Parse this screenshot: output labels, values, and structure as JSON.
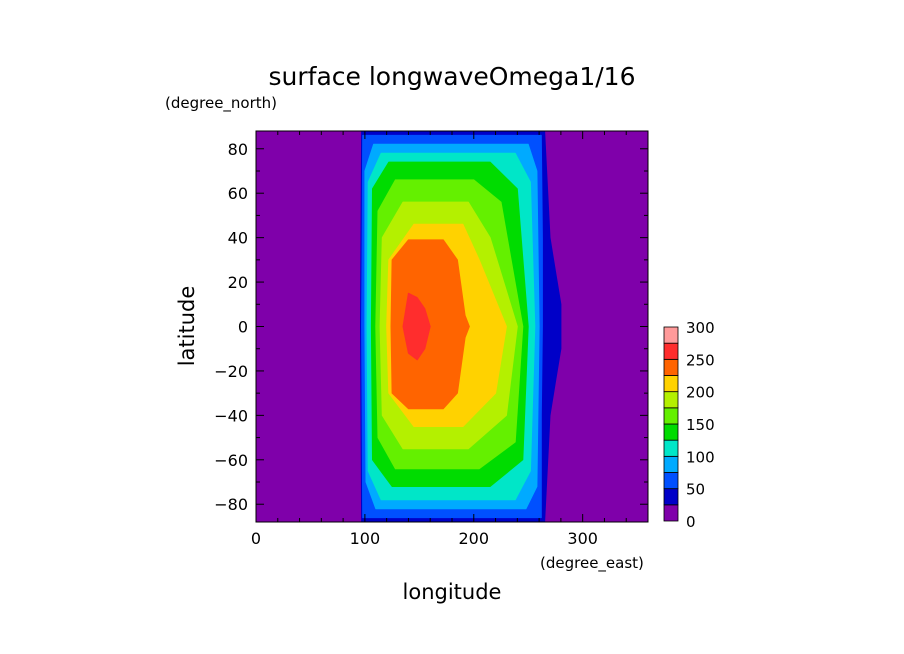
{
  "chart_data": {
    "type": "heatmap",
    "title": "surface longwaveOmega1/16",
    "xlabel": "longitude",
    "ylabel": "latitude",
    "xunits": "(degree_east)",
    "yunits": "(degree_north)",
    "xlim": [
      0,
      360
    ],
    "ylim": [
      -88,
      88
    ],
    "xticks": [
      0,
      100,
      200,
      300
    ],
    "yticks": [
      -80,
      -60,
      -40,
      -20,
      0,
      20,
      40,
      60,
      80
    ],
    "colorbar": {
      "levels": [
        0,
        25,
        50,
        75,
        100,
        125,
        150,
        175,
        200,
        225,
        250,
        275,
        300
      ],
      "labels": [
        "0",
        "50",
        "100",
        "150",
        "200",
        "250",
        "300"
      ],
      "label_values": [
        0,
        50,
        100,
        150,
        200,
        250,
        300
      ],
      "colors": [
        "#7f00aa",
        "#0000c8",
        "#0050ff",
        "#00aaff",
        "#00e6c8",
        "#00dc00",
        "#64f000",
        "#b4f000",
        "#ffd200",
        "#ff6400",
        "#ff2d2d",
        "#ff9a9a"
      ]
    },
    "contours": [
      {
        "level_min": 0,
        "color": "#0000c8",
        "points": [
          [
            97,
            88
          ],
          [
            265,
            88
          ],
          [
            270,
            40
          ],
          [
            275,
            25
          ],
          [
            280,
            10
          ],
          [
            280,
            -10
          ],
          [
            275,
            -25
          ],
          [
            270,
            -40
          ],
          [
            265,
            -88
          ],
          [
            97,
            -88
          ],
          [
            96,
            0
          ]
        ]
      },
      {
        "level_min": 25,
        "color": "#0050ff",
        "points": [
          [
            98,
            86
          ],
          [
            262,
            86
          ],
          [
            263,
            40
          ],
          [
            263,
            0
          ],
          [
            262,
            -40
          ],
          [
            262,
            -86
          ],
          [
            98,
            -86
          ],
          [
            97,
            0
          ]
        ]
      },
      {
        "level_min": 50,
        "color": "#00aaff",
        "points": [
          [
            108,
            82
          ],
          [
            250,
            82
          ],
          [
            258,
            70
          ],
          [
            260,
            0
          ],
          [
            258,
            -72
          ],
          [
            248,
            -82
          ],
          [
            110,
            -82
          ],
          [
            101,
            -70
          ],
          [
            100,
            0
          ],
          [
            100,
            70
          ]
        ]
      },
      {
        "level_min": 75,
        "color": "#00e6c8",
        "points": [
          [
            115,
            78
          ],
          [
            238,
            78
          ],
          [
            252,
            65
          ],
          [
            256,
            0
          ],
          [
            252,
            -65
          ],
          [
            238,
            -78
          ],
          [
            115,
            -78
          ],
          [
            103,
            -65
          ],
          [
            102,
            0
          ],
          [
            103,
            65
          ]
        ]
      },
      {
        "level_min": 100,
        "color": "#00dc00",
        "points": [
          [
            122,
            74
          ],
          [
            215,
            74
          ],
          [
            240,
            62
          ],
          [
            250,
            0
          ],
          [
            245,
            -60
          ],
          [
            215,
            -72
          ],
          [
            125,
            -72
          ],
          [
            107,
            -60
          ],
          [
            106,
            0
          ],
          [
            107,
            62
          ]
        ]
      },
      {
        "level_min": 125,
        "color": "#64f000",
        "points": [
          [
            128,
            66
          ],
          [
            200,
            66
          ],
          [
            225,
            56
          ],
          [
            245,
            0
          ],
          [
            238,
            -52
          ],
          [
            205,
            -64
          ],
          [
            128,
            -64
          ],
          [
            112,
            -50
          ],
          [
            110,
            0
          ],
          [
            112,
            52
          ]
        ]
      },
      {
        "level_min": 150,
        "color": "#b4f000",
        "points": [
          [
            135,
            56
          ],
          [
            195,
            56
          ],
          [
            215,
            40
          ],
          [
            240,
            0
          ],
          [
            230,
            -40
          ],
          [
            195,
            -55
          ],
          [
            135,
            -55
          ],
          [
            116,
            -40
          ],
          [
            114,
            0
          ],
          [
            116,
            40
          ]
        ]
      },
      {
        "level_min": 175,
        "color": "#ffd200",
        "points": [
          [
            145,
            46
          ],
          [
            190,
            46
          ],
          [
            205,
            30
          ],
          [
            230,
            0
          ],
          [
            220,
            -30
          ],
          [
            190,
            -45
          ],
          [
            145,
            -45
          ],
          [
            122,
            -30
          ],
          [
            120,
            0
          ],
          [
            122,
            30
          ]
        ]
      },
      {
        "level_min": 200,
        "color": "#ff6400",
        "points": [
          [
            140,
            39
          ],
          [
            172,
            39
          ],
          [
            185,
            30
          ],
          [
            192,
            5
          ],
          [
            196,
            0
          ],
          [
            192,
            -5
          ],
          [
            185,
            -30
          ],
          [
            172,
            -37
          ],
          [
            140,
            -37
          ],
          [
            125,
            -30
          ],
          [
            124,
            0
          ],
          [
            125,
            30
          ]
        ]
      },
      {
        "level_min": 250,
        "color": "#ff2d2d",
        "points": [
          [
            140,
            15
          ],
          [
            148,
            13
          ],
          [
            155,
            8
          ],
          [
            160,
            0
          ],
          [
            155,
            -10
          ],
          [
            148,
            -15
          ],
          [
            140,
            -12
          ],
          [
            135,
            0
          ]
        ]
      }
    ]
  }
}
